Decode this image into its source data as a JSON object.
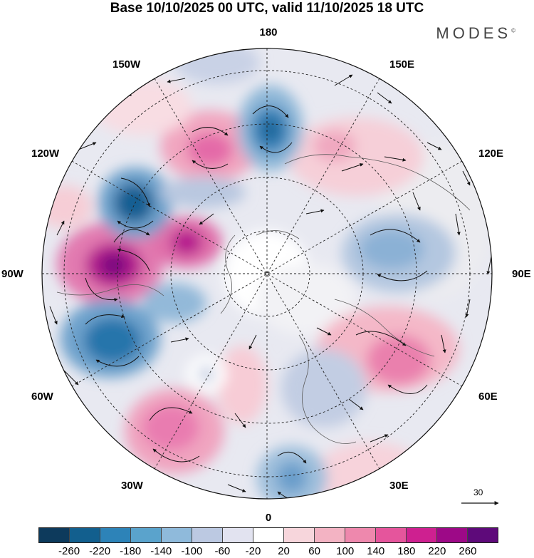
{
  "title": "Base 10/10/2025 00 UTC, valid 11/10/2025 18 UTC",
  "brand": "MODES",
  "brand_mark": "©",
  "longitude_labels": {
    "top": "180",
    "bottom": "0",
    "left": "90W",
    "right": "90E",
    "upper_left_1": "150W",
    "upper_left_2": "120W",
    "upper_right_1": "150E",
    "upper_right_2": "120E",
    "lower_left_1": "60W",
    "lower_left_2": "30W",
    "lower_right_1": "60E",
    "lower_right_2": "30E"
  },
  "reference_vector": {
    "value": "30",
    "icon": "arrow-right-icon"
  },
  "colorbar": {
    "colors": [
      "#0d3a5c",
      "#125f8e",
      "#2d83b8",
      "#5aa3cc",
      "#8fbadb",
      "#bcc9e2",
      "#e2e3f0",
      "#ffffff",
      "#f7d6dc",
      "#f3b3c3",
      "#ee88ad",
      "#e5559c",
      "#ce2090",
      "#9d0987",
      "#5e0a7a"
    ],
    "ticks": [
      "-260",
      "-220",
      "-180",
      "-140",
      "-100",
      "-60",
      "-20",
      "20",
      "60",
      "100",
      "140",
      "180",
      "220",
      "260"
    ]
  }
}
